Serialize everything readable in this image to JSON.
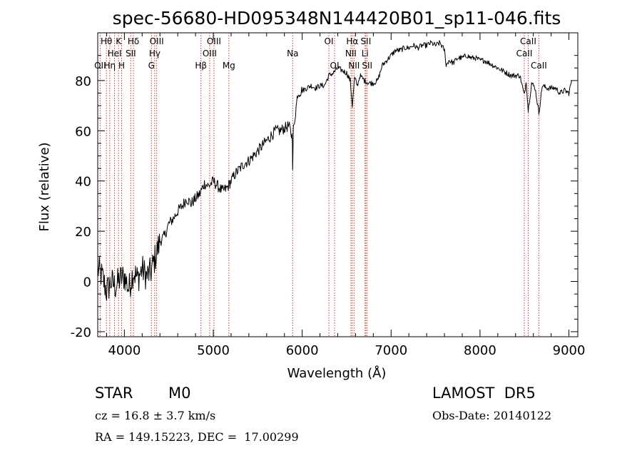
{
  "chart_data": {
    "type": "line",
    "title": "spec-56680-HD095348N144420B01_sp11-046.fits",
    "xlabel": "Wavelength (Å)",
    "ylabel": "Flux (relative)",
    "xlim": [
      3700,
      9100
    ],
    "ylim": [
      -22,
      99
    ],
    "xticks": [
      4000,
      5000,
      6000,
      7000,
      8000,
      9000
    ],
    "yticks": [
      -20,
      0,
      20,
      40,
      60,
      80
    ],
    "grid": false,
    "series": [
      {
        "color": "#000000",
        "x": [
          3700,
          3750,
          3800,
          3850,
          3900,
          3950,
          4000,
          4050,
          4100,
          4150,
          4200,
          4250,
          4300,
          4350,
          4400,
          4450,
          4500,
          4550,
          4600,
          4650,
          4700,
          4750,
          4800,
          4850,
          4900,
          4950,
          5000,
          5050,
          5100,
          5150,
          5200,
          5250,
          5300,
          5350,
          5400,
          5450,
          5500,
          5550,
          5600,
          5650,
          5700,
          5750,
          5800,
          5850,
          5890,
          5893,
          5900,
          5950,
          6000,
          6050,
          6100,
          6150,
          6200,
          6250,
          6300,
          6350,
          6400,
          6450,
          6500,
          6540,
          6563,
          6590,
          6620,
          6650,
          6700,
          6750,
          6800,
          6850,
          6900,
          6950,
          7000,
          7050,
          7100,
          7150,
          7200,
          7250,
          7300,
          7350,
          7400,
          7450,
          7500,
          7550,
          7600,
          7620,
          7650,
          7700,
          7750,
          7800,
          7850,
          7900,
          7950,
          8000,
          8050,
          8100,
          8150,
          8200,
          8250,
          8300,
          8350,
          8400,
          8450,
          8498,
          8520,
          8542,
          8580,
          8620,
          8662,
          8700,
          8750,
          8800,
          8850,
          8900,
          8950,
          9000,
          9030
        ],
        "y": [
          5,
          2,
          -4,
          0,
          -2,
          1,
          2,
          -3,
          4,
          1,
          5,
          2,
          4,
          10,
          16,
          18,
          23,
          25,
          28,
          30,
          33,
          31,
          33,
          35,
          39,
          38,
          40,
          38,
          36,
          37,
          40,
          43,
          45,
          47,
          48,
          50,
          52,
          54,
          56,
          58,
          60,
          60,
          61,
          62,
          57,
          43,
          60,
          75,
          76,
          77,
          78,
          77,
          78,
          78,
          82,
          83,
          85,
          84,
          83,
          80,
          70,
          81,
          78,
          82,
          80,
          79,
          79,
          80,
          86,
          88,
          90,
          92,
          92,
          93,
          93,
          94,
          93,
          94,
          94,
          95,
          94,
          95,
          92,
          86,
          88,
          87,
          89,
          89,
          90,
          89,
          89,
          88,
          88,
          87,
          86,
          85,
          84,
          83,
          82,
          82,
          82,
          74,
          80,
          68,
          79,
          77,
          67,
          78,
          77,
          77,
          77,
          75,
          76,
          75,
          80
        ]
      }
    ],
    "lines": [
      {
        "x": 3727,
        "label": "OII",
        "row": 3
      },
      {
        "x": 3798,
        "label": "Hθ",
        "row": 1
      },
      {
        "x": 3835,
        "label": "Hη",
        "row": 3
      },
      {
        "x": 3889,
        "label": "HeI",
        "row": 2
      },
      {
        "x": 3934,
        "label": "K",
        "row": 1
      },
      {
        "x": 3969,
        "label": "H",
        "row": 3
      },
      {
        "x": 4072,
        "label": "SII",
        "row": 2
      },
      {
        "x": 4102,
        "label": "Hδ",
        "row": 1
      },
      {
        "x": 4304,
        "label": "G",
        "row": 3
      },
      {
        "x": 4341,
        "label": "Hγ",
        "row": 2
      },
      {
        "x": 4363,
        "label": "OIII",
        "row": 1
      },
      {
        "x": 4861,
        "label": "Hβ",
        "row": 3
      },
      {
        "x": 4959,
        "label": "OIII",
        "row": 2
      },
      {
        "x": 5007,
        "label": "OIII",
        "row": 1
      },
      {
        "x": 5175,
        "label": "Mg",
        "row": 3
      },
      {
        "x": 5893,
        "label": "Na",
        "row": 2
      },
      {
        "x": 6300,
        "label": "OI",
        "row": 1
      },
      {
        "x": 6364,
        "label": "OI",
        "row": 3
      },
      {
        "x": 6548,
        "label": "NII",
        "row": 2
      },
      {
        "x": 6563,
        "label": "Hα",
        "row": 1
      },
      {
        "x": 6583,
        "label": "NII",
        "row": 3
      },
      {
        "x": 6707,
        "label": "Li",
        "row": 2
      },
      {
        "x": 6716,
        "label": "SII",
        "row": 1
      },
      {
        "x": 6731,
        "label": "SII",
        "row": 3
      },
      {
        "x": 8498,
        "label": "CaII",
        "row": 2
      },
      {
        "x": 8542,
        "label": "CaII",
        "row": 1
      },
      {
        "x": 8662,
        "label": "CaII",
        "row": 3
      }
    ]
  },
  "info": {
    "object_class": "STAR",
    "subclass": "M0",
    "survey": "LAMOST  DR5",
    "redshift": "cz = 16.8 ± 3.7 km/s",
    "obs_date": "Obs-Date: 20140122",
    "coords": "RA = 149.15223, DEC =  17.00299"
  }
}
